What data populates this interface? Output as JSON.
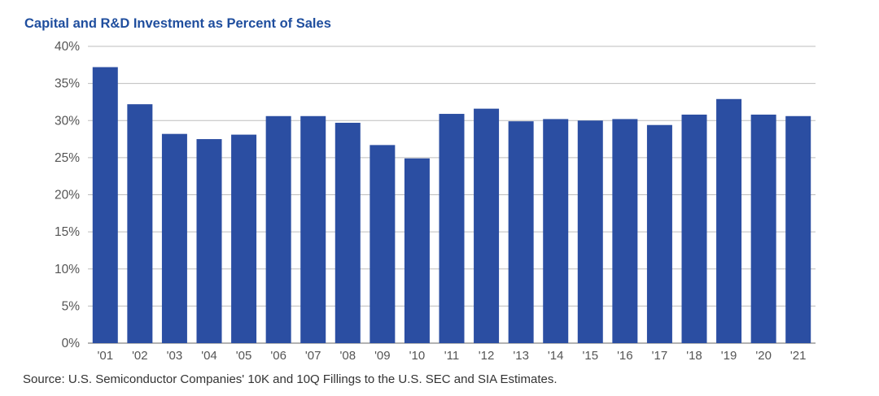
{
  "chart_data": {
    "type": "bar",
    "title": "Capital and R&D Investment as Percent of Sales",
    "source": "Source: U.S. Semiconductor Companies' 10K and 10Q Fillings to the U.S. SEC and SIA Estimates.",
    "xlabel": "",
    "ylabel": "",
    "ylim": [
      0,
      40
    ],
    "yticks": [
      "0%",
      "5%",
      "10%",
      "15%",
      "20%",
      "25%",
      "30%",
      "35%",
      "40%"
    ],
    "ytick_values": [
      0,
      5,
      10,
      15,
      20,
      25,
      30,
      35,
      40
    ],
    "grid": true,
    "categories": [
      "'01",
      "'02",
      "'03",
      "'04",
      "'05",
      "'06",
      "'07",
      "'08",
      "'09",
      "'10",
      "'11",
      "'12",
      "'13",
      "'14",
      "'15",
      "'16",
      "'17",
      "'18",
      "'19",
      "'20",
      "'21"
    ],
    "values": [
      37.2,
      32.2,
      28.2,
      27.5,
      28.1,
      30.6,
      30.6,
      29.7,
      26.7,
      24.9,
      30.9,
      31.6,
      29.9,
      30.2,
      30.0,
      30.2,
      29.4,
      30.8,
      32.9,
      30.8,
      30.6
    ],
    "bar_color": "#2b4ea2",
    "grid_color": "#bdbdbd"
  }
}
